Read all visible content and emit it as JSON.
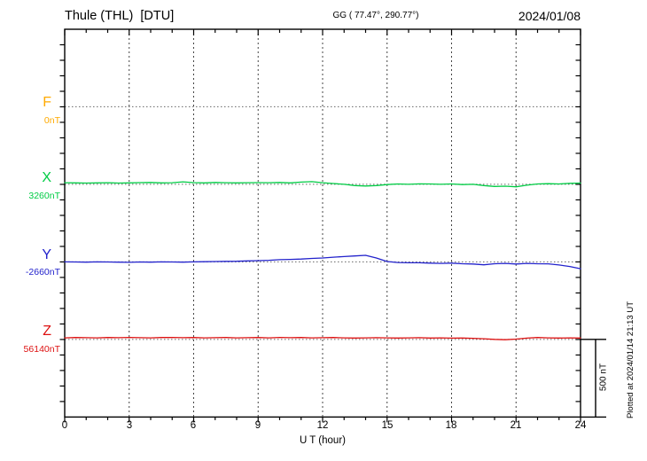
{
  "header": {
    "station": "Thule (THL)  [DTU]",
    "coords": "GG ( 77.47°, 290.77°)",
    "date": "2024/01/08"
  },
  "traces": [
    {
      "letter": "F",
      "value_label": "0nT",
      "color": "#FFAA00"
    },
    {
      "letter": "X",
      "value_label": "3260nT",
      "color": "#00CC44"
    },
    {
      "letter": "Y",
      "value_label": "-2660nT",
      "color": "#2222CC"
    },
    {
      "letter": "Z",
      "value_label": "56140nT",
      "color": "#DD1111"
    }
  ],
  "x_axis": {
    "ticks": [
      "0",
      "3",
      "6",
      "9",
      "12",
      "15",
      "18",
      "21",
      "24"
    ],
    "label": "U T (hour)"
  },
  "scalebar": {
    "label": "500 nT"
  },
  "footer_note": "Plotted at 2024/01/14 21:13 UT",
  "chart_data": {
    "type": "line",
    "title": "Thule (THL) [DTU] magnetogram, 2024/01/08",
    "xlabel": "U T (hour)",
    "x_range": [
      0,
      24
    ],
    "x_step_hours": 0.5,
    "x_major_ticks": [
      0,
      3,
      6,
      9,
      12,
      15,
      18,
      21,
      24
    ],
    "y_division_nT": 500,
    "y_minor_tick_nT": 100,
    "legend_position": "left baselines",
    "grid": "dotted vertical every 3 h, dotted horizontal at each baseline",
    "series": [
      {
        "name": "F",
        "baseline_nT": 0,
        "color": "#FFAA00",
        "note": "no data plotted",
        "offsets_nT": []
      },
      {
        "name": "X",
        "baseline_nT": 3260,
        "color": "#00CC44",
        "offsets_nT": [
          10,
          9,
          8,
          9,
          10,
          8,
          9,
          11,
          12,
          9,
          10,
          16,
          11,
          9,
          12,
          10,
          9,
          10,
          11,
          10,
          12,
          9,
          14,
          17,
          10,
          5,
          0,
          -8,
          -11,
          -8,
          -2,
          2,
          0,
          3,
          2,
          0,
          2,
          -2,
          0,
          -8,
          -14,
          -12,
          -16,
          -6,
          2,
          4,
          2,
          6,
          8
        ]
      },
      {
        "name": "Y",
        "baseline_nT": -2660,
        "color": "#2222CC",
        "offsets_nT": [
          0,
          -1,
          -2,
          0,
          -1,
          -2,
          -3,
          -1,
          -2,
          0,
          -1,
          -2,
          0,
          1,
          2,
          3,
          4,
          6,
          8,
          10,
          14,
          16,
          18,
          22,
          25,
          30,
          34,
          38,
          42,
          25,
          2,
          -4,
          -6,
          -6,
          -8,
          -10,
          -8,
          -12,
          -14,
          -19,
          -12,
          -10,
          -14,
          -10,
          -12,
          -13,
          -20,
          -30,
          -44
        ]
      },
      {
        "name": "Z",
        "baseline_nT": 56140,
        "color": "#DD1111",
        "offsets_nT": [
          10,
          12,
          11,
          10,
          12,
          11,
          13,
          11,
          10,
          12,
          13,
          11,
          12,
          10,
          11,
          12,
          10,
          11,
          12,
          10,
          13,
          11,
          12,
          10,
          11,
          12,
          10,
          9,
          10,
          11,
          10,
          9,
          10,
          11,
          9,
          10,
          8,
          9,
          7,
          4,
          0,
          -2,
          2,
          8,
          12,
          10,
          9,
          10,
          9
        ]
      }
    ]
  }
}
